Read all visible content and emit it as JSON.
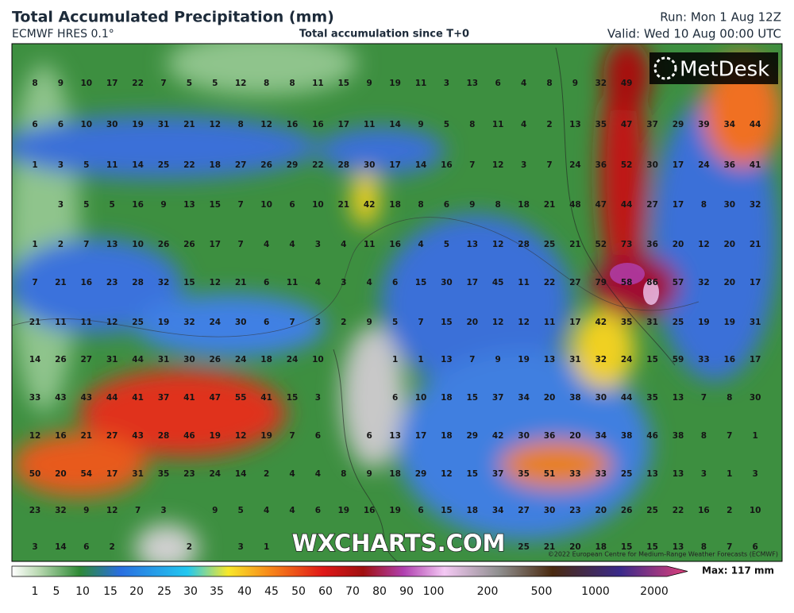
{
  "header": {
    "title": "Total Accumulated Precipitation (mm)",
    "model": "ECMWF HRES 0.1°",
    "subtitle": "Total accumulation since T+0",
    "run": "Run: Mon 1 Aug 12Z",
    "valid": "Valid: Wed 10 Aug 00:00 UTC"
  },
  "map": {
    "logo": "MetDesk",
    "watermark": "WXCHARTS.COM",
    "copyright": "©2022 European Centre for Medium-Range Weather Forecasts (ECMWF)",
    "grid": [
      [
        8,
        9,
        10,
        17,
        22,
        7,
        5,
        5,
        12,
        8,
        8,
        11,
        15,
        9,
        19,
        11,
        3,
        13,
        6,
        4,
        8,
        9,
        32,
        49,
        null,
        null,
        null,
        null,
        null
      ],
      [
        6,
        6,
        10,
        30,
        19,
        31,
        21,
        12,
        8,
        12,
        16,
        16,
        17,
        11,
        14,
        9,
        5,
        8,
        11,
        4,
        2,
        13,
        35,
        47,
        37,
        29,
        39,
        34,
        44
      ],
      [
        1,
        3,
        5,
        11,
        14,
        25,
        22,
        18,
        27,
        26,
        29,
        22,
        28,
        30,
        17,
        14,
        16,
        7,
        12,
        3,
        7,
        24,
        36,
        52,
        30,
        17,
        24,
        36,
        41
      ],
      [
        null,
        3,
        5,
        5,
        16,
        9,
        13,
        15,
        7,
        10,
        6,
        10,
        21,
        42,
        18,
        8,
        6,
        9,
        8,
        18,
        21,
        48,
        47,
        44,
        27,
        17,
        8,
        30,
        32
      ],
      [
        1,
        2,
        7,
        13,
        10,
        26,
        26,
        17,
        7,
        4,
        4,
        3,
        4,
        11,
        16,
        4,
        5,
        13,
        12,
        28,
        25,
        21,
        52,
        73,
        36,
        20,
        12,
        20,
        21
      ],
      [
        7,
        21,
        16,
        23,
        28,
        32,
        15,
        12,
        21,
        6,
        11,
        4,
        3,
        4,
        6,
        15,
        30,
        17,
        45,
        11,
        22,
        27,
        79,
        58,
        86,
        57,
        32,
        20,
        17
      ],
      [
        21,
        11,
        11,
        12,
        25,
        19,
        32,
        24,
        30,
        6,
        7,
        3,
        2,
        9,
        5,
        7,
        15,
        20,
        12,
        12,
        11,
        17,
        42,
        35,
        31,
        25,
        19,
        19,
        31
      ],
      [
        14,
        26,
        27,
        31,
        44,
        31,
        30,
        26,
        24,
        18,
        24,
        10,
        null,
        null,
        1,
        1,
        13,
        7,
        9,
        19,
        13,
        31,
        32,
        24,
        15,
        59,
        33,
        16,
        17
      ],
      [
        33,
        43,
        43,
        44,
        41,
        37,
        41,
        47,
        55,
        41,
        15,
        3,
        null,
        null,
        6,
        10,
        18,
        15,
        37,
        34,
        20,
        38,
        30,
        44,
        35,
        13,
        7,
        8,
        30
      ],
      [
        12,
        16,
        21,
        27,
        43,
        28,
        46,
        19,
        12,
        19,
        7,
        6,
        null,
        6,
        13,
        17,
        18,
        29,
        42,
        30,
        36,
        20,
        34,
        38,
        46,
        38,
        8,
        7,
        1
      ],
      [
        50,
        20,
        54,
        17,
        31,
        35,
        23,
        24,
        14,
        2,
        4,
        4,
        8,
        9,
        18,
        29,
        12,
        15,
        37,
        35,
        51,
        33,
        33,
        25,
        13,
        13,
        3,
        1,
        3
      ],
      [
        23,
        32,
        9,
        12,
        7,
        3,
        null,
        9,
        5,
        4,
        4,
        6,
        19,
        16,
        19,
        6,
        15,
        18,
        34,
        27,
        30,
        23,
        20,
        26,
        25,
        22,
        16,
        2,
        10
      ],
      [
        3,
        14,
        6,
        2,
        null,
        null,
        2,
        null,
        3,
        1,
        null,
        null,
        null,
        null,
        null,
        null,
        null,
        null,
        null,
        25,
        21,
        20,
        18,
        15,
        15,
        13,
        8,
        7,
        6
      ]
    ]
  },
  "colorbar": {
    "labels": [
      1,
      5,
      10,
      15,
      20,
      25,
      30,
      35,
      40,
      45,
      50,
      60,
      70,
      80,
      90,
      100,
      200,
      500,
      1000,
      2000
    ],
    "max": "Max: 117 mm"
  }
}
